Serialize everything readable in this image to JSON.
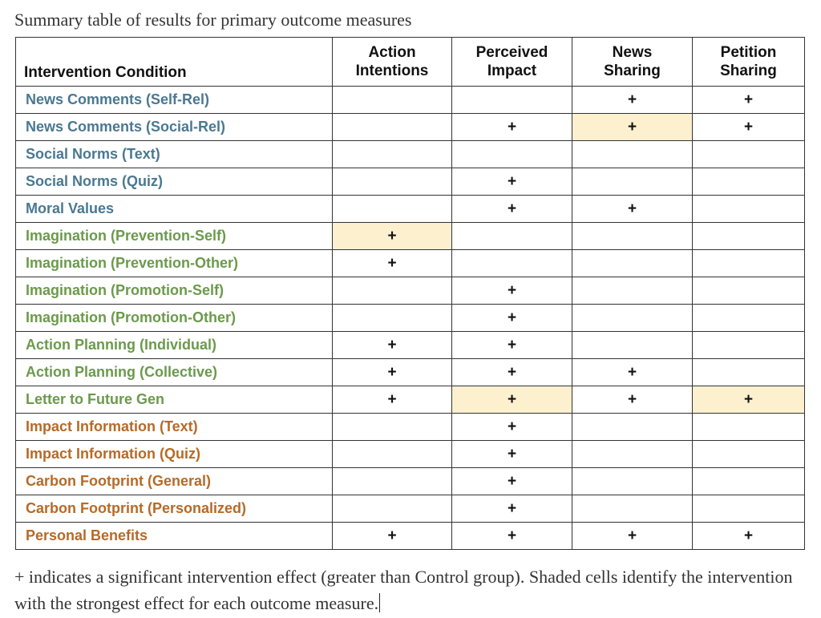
{
  "caption": "Summary table of results for primary outcome measures",
  "header": {
    "condition": "Intervention Condition",
    "col1": [
      "Action",
      "Intentions"
    ],
    "col2": [
      "Perceived",
      "Impact"
    ],
    "col3": [
      "News",
      "Sharing"
    ],
    "col4": [
      "Petition",
      "Sharing"
    ]
  },
  "colors": {
    "blue": "#4a7891",
    "green": "#6b9a4b",
    "orange": "#b66a27",
    "shaded": "#fcf0cf"
  },
  "mark_symbol": "+",
  "rows": [
    {
      "label": "News Comments (Self-Rel)",
      "group": "blue",
      "cells": [
        "",
        "",
        "+",
        "+"
      ],
      "shaded": [
        false,
        false,
        false,
        false
      ]
    },
    {
      "label": "News Comments (Social-Rel)",
      "group": "blue",
      "cells": [
        "",
        "+",
        "+",
        "+"
      ],
      "shaded": [
        false,
        false,
        true,
        false
      ]
    },
    {
      "label": "Social Norms (Text)",
      "group": "blue",
      "cells": [
        "",
        "",
        "",
        ""
      ],
      "shaded": [
        false,
        false,
        false,
        false
      ]
    },
    {
      "label": "Social Norms (Quiz)",
      "group": "blue",
      "cells": [
        "",
        "+",
        "",
        ""
      ],
      "shaded": [
        false,
        false,
        false,
        false
      ]
    },
    {
      "label": "Moral Values",
      "group": "blue",
      "cells": [
        "",
        "+",
        "+",
        ""
      ],
      "shaded": [
        false,
        false,
        false,
        false
      ]
    },
    {
      "label": "Imagination (Prevention-Self)",
      "group": "green",
      "cells": [
        "+",
        "",
        "",
        ""
      ],
      "shaded": [
        true,
        false,
        false,
        false
      ]
    },
    {
      "label": "Imagination (Prevention-Other)",
      "group": "green",
      "cells": [
        "+",
        "",
        "",
        ""
      ],
      "shaded": [
        false,
        false,
        false,
        false
      ]
    },
    {
      "label": "Imagination (Promotion-Self)",
      "group": "green",
      "cells": [
        "",
        "+",
        "",
        ""
      ],
      "shaded": [
        false,
        false,
        false,
        false
      ]
    },
    {
      "label": "Imagination (Promotion-Other)",
      "group": "green",
      "cells": [
        "",
        "+",
        "",
        ""
      ],
      "shaded": [
        false,
        false,
        false,
        false
      ]
    },
    {
      "label": "Action Planning (Individual)",
      "group": "green",
      "cells": [
        "+",
        "+",
        "",
        ""
      ],
      "shaded": [
        false,
        false,
        false,
        false
      ]
    },
    {
      "label": "Action Planning (Collective)",
      "group": "green",
      "cells": [
        "+",
        "+",
        "+",
        ""
      ],
      "shaded": [
        false,
        false,
        false,
        false
      ]
    },
    {
      "label": "Letter to Future Gen",
      "group": "green",
      "cells": [
        "+",
        "+",
        "+",
        "+"
      ],
      "shaded": [
        false,
        true,
        false,
        true
      ]
    },
    {
      "label": "Impact Information (Text)",
      "group": "orange",
      "cells": [
        "",
        "+",
        "",
        ""
      ],
      "shaded": [
        false,
        false,
        false,
        false
      ]
    },
    {
      "label": "Impact Information (Quiz)",
      "group": "orange",
      "cells": [
        "",
        "+",
        "",
        ""
      ],
      "shaded": [
        false,
        false,
        false,
        false
      ]
    },
    {
      "label": "Carbon Footprint (General)",
      "group": "orange",
      "cells": [
        "",
        "+",
        "",
        ""
      ],
      "shaded": [
        false,
        false,
        false,
        false
      ]
    },
    {
      "label": "Carbon Footprint (Personalized)",
      "group": "orange",
      "cells": [
        "",
        "+",
        "",
        ""
      ],
      "shaded": [
        false,
        false,
        false,
        false
      ]
    },
    {
      "label": "Personal Benefits",
      "group": "orange",
      "cells": [
        "+",
        "+",
        "+",
        "+"
      ],
      "shaded": [
        false,
        false,
        false,
        false
      ]
    }
  ],
  "footnote": "+ indicates a significant intervention effect (greater than Control group). Shaded cells identify the intervention with the strongest effect for each outcome measure."
}
